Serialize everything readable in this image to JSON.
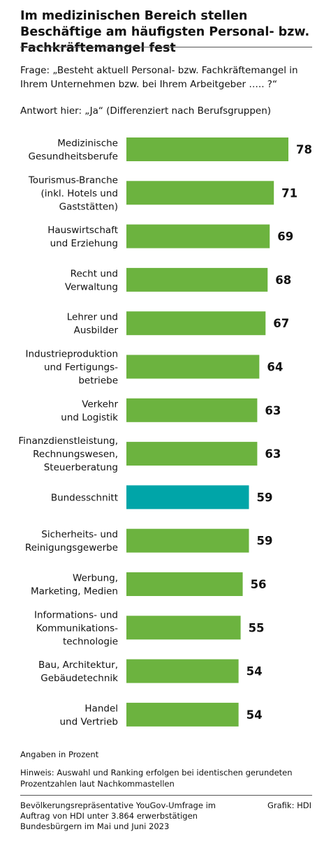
{
  "title": "Im medizinischen Bereich stellen Beschäftige am häufigsten Personal- bzw. Fachkräftemangel fest",
  "question": "Frage: „Besteht aktuell Personal- bzw. Fachkräftemangel in Ihrem Unternehmen bzw. bei Ihrem Arbeitgeber ….. ?“",
  "answer_note": "Antwort hier: „Ja“ (Differenziert nach Berufsgruppen)",
  "unit_note": "Angaben in Prozent",
  "hint": "Hinweis: Auswahl und Ranking erfolgen bei identischen gerundeten Prozentzahlen laut Nachkommastellen",
  "source": "Bevölkerungsrepräsentative YouGov-Umfrage im Auftrag von HDI unter 3.864 erwerbstätigen Bundesbürgern im Mai und Juni 2023",
  "credit": "Grafik: HDI",
  "colors": {
    "bar": "#6cb33f",
    "highlight": "#00a5a8"
  },
  "chart_data": {
    "type": "bar",
    "orientation": "horizontal",
    "categories": [
      "Medizinische\nGesundheitsberufe",
      "Tourismus-Branche\n(inkl. Hotels und\nGaststätten)",
      "Hauswirtschaft\nund Erziehung",
      "Recht und\nVerwaltung",
      "Lehrer und\nAusbilder",
      "Industrieproduktion\nund Fertigungs-\nbetriebe",
      "Verkehr\nund Logistik",
      "Finanzdienstleistung,\nRechnungswesen,\nSteuerberatung",
      "Bundesschnitt",
      "Sicherheits- und\nReinigungsgewerbe",
      "Werbung,\nMarketing, Medien",
      "Informations- und\nKommunikations-\ntechnologie",
      "Bau, Architektur,\nGebäudetechnik",
      "Handel\nund Vertrieb"
    ],
    "values": [
      78,
      71,
      69,
      68,
      67,
      64,
      63,
      63,
      59,
      59,
      56,
      55,
      54,
      54
    ],
    "highlight": [
      "Bundesschnitt"
    ],
    "xlim": [
      0,
      78
    ],
    "grid": false,
    "data_labels": true
  }
}
